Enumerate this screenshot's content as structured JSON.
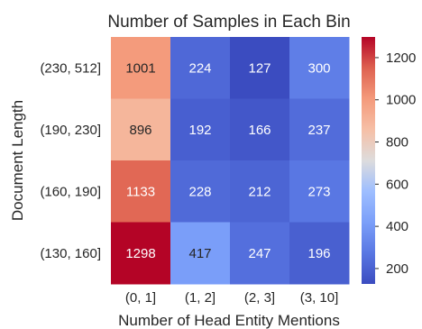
{
  "chart_data": {
    "type": "heatmap",
    "title": "Number of Samples in Each Bin",
    "xlabel": "Number of Head Entity Mentions",
    "ylabel": "Document Length",
    "x_categories": [
      "(0, 1]",
      "(1, 2]",
      "(2, 3]",
      "(3, 10]"
    ],
    "y_categories": [
      "(230, 512]",
      "(190, 230]",
      "(160, 190]",
      "(130, 160]"
    ],
    "values": [
      [
        1001,
        224,
        127,
        300
      ],
      [
        896,
        192,
        166,
        237
      ],
      [
        1133,
        228,
        212,
        273
      ],
      [
        1298,
        417,
        247,
        196
      ]
    ],
    "colormap": "coolwarm",
    "vmin": 127,
    "vmax": 1298,
    "colorbar_ticks": [
      200,
      400,
      600,
      800,
      1000,
      1200
    ],
    "colorbar_tick_labels": [
      "200",
      "400",
      "600",
      "800",
      "1000",
      "1200"
    ],
    "grid": false,
    "legend": "colorbar-right"
  }
}
